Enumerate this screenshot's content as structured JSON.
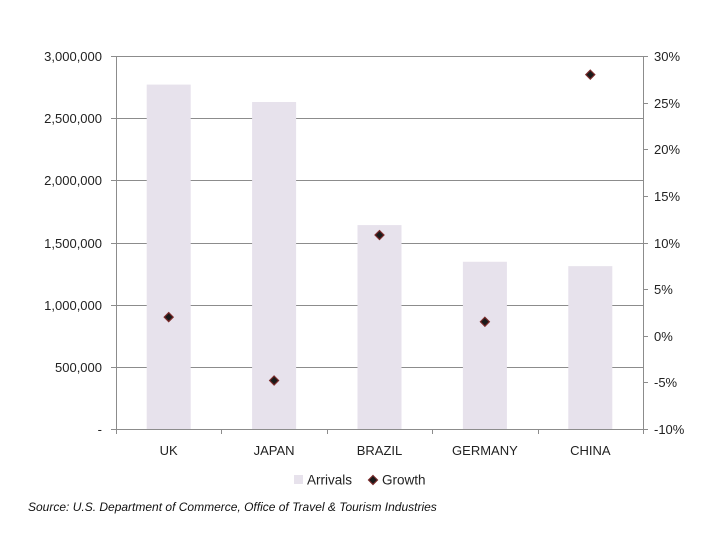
{
  "chart_data": {
    "type": "bar",
    "categories": [
      "UK",
      "JAPAN",
      "BRAZIL",
      "GERMANY",
      "CHINA"
    ],
    "series": [
      {
        "name": "Arrivals",
        "kind": "bar",
        "axis": "left",
        "color": "#e7e2ec",
        "values": [
          2770000,
          2630000,
          1640000,
          1345000,
          1310000
        ]
      },
      {
        "name": "Growth",
        "kind": "scatter",
        "axis": "right",
        "color": "#1a1a1a",
        "marker_edge_color": "#7a2a2a",
        "marker": "diamond",
        "values": [
          2.0,
          -4.8,
          10.8,
          1.5,
          28.0
        ]
      }
    ],
    "y_left": {
      "ylim": [
        0,
        3000000
      ],
      "ticks": [
        0,
        500000,
        1000000,
        1500000,
        2000000,
        2500000,
        3000000
      ],
      "tick_labels": [
        "-",
        "500,000",
        "1,000,000",
        "1,500,000",
        "2,000,000",
        "2,500,000",
        "3,000,000"
      ]
    },
    "y_right": {
      "ylim": [
        -10,
        30
      ],
      "ticks": [
        -10,
        -5,
        0,
        5,
        10,
        15,
        20,
        25,
        30
      ],
      "tick_labels": [
        "-10%",
        "-5%",
        "0%",
        "5%",
        "10%",
        "15%",
        "20%",
        "25%",
        "30%"
      ]
    },
    "grid": true,
    "grid_color": "#8c8c8c",
    "legend": {
      "placement": "bottom-center",
      "entries": [
        "Arrivals",
        "Growth"
      ]
    }
  },
  "source_note": "Source:  U.S. Department of Commerce, Office of Travel & Tourism Industries"
}
